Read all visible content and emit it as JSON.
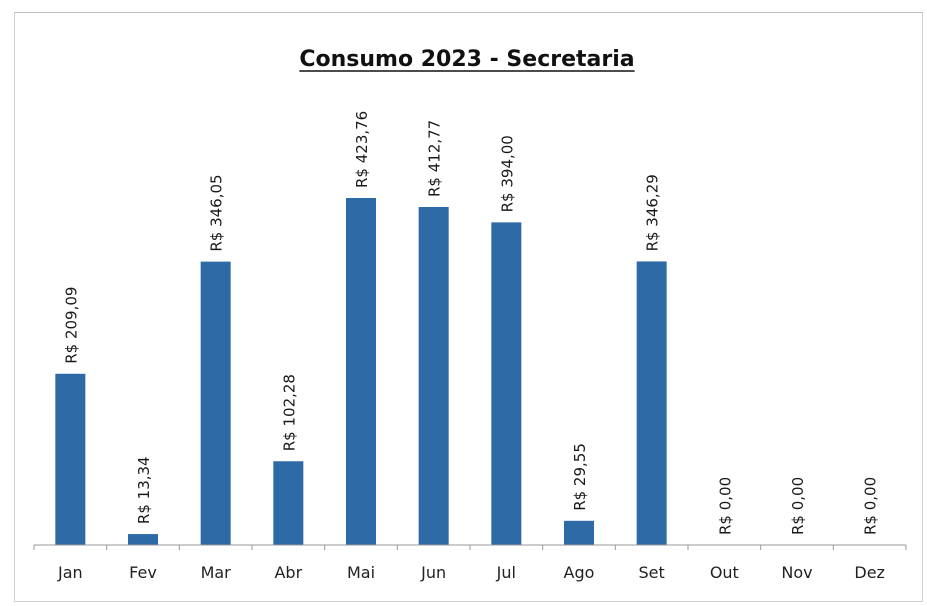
{
  "chart_data": {
    "type": "bar",
    "title": "Consumo 2023 - Secretaria",
    "categories": [
      "Jan",
      "Fev",
      "Mar",
      "Abr",
      "Mai",
      "Jun",
      "Jul",
      "Ago",
      "Set",
      "Out",
      "Nov",
      "Dez"
    ],
    "values": [
      209.09,
      13.34,
      346.05,
      102.28,
      423.76,
      412.77,
      394.0,
      29.55,
      346.29,
      0.0,
      0.0,
      0.0
    ],
    "data_labels": [
      "R$ 209,09",
      "R$ 13,34",
      "R$ 346,05",
      "R$ 102,28",
      "R$ 423,76",
      "R$ 412,77",
      "R$ 394,00",
      "R$ 29,55",
      "R$ 346,29",
      "R$ 0,00",
      "R$ 0,00",
      "R$ 0,00"
    ],
    "xlabel": "",
    "ylabel": "",
    "ylim": [
      0,
      423.76
    ],
    "grid": false,
    "legend": "none",
    "bar_color": "#2e6aa6"
  }
}
